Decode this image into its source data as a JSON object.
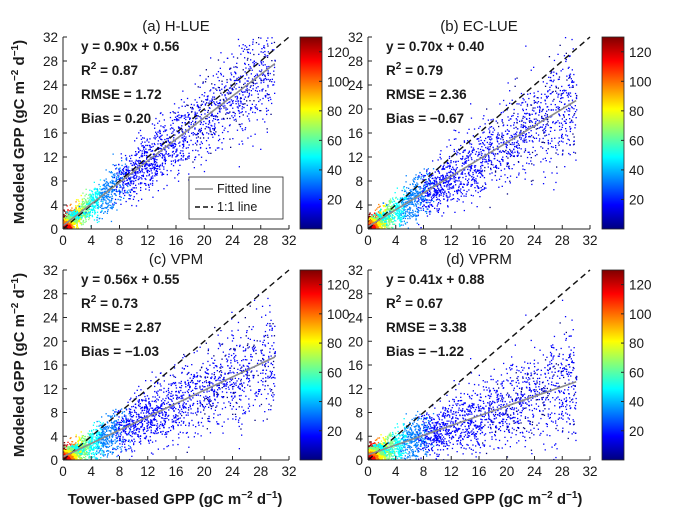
{
  "colors": {
    "axis": "#262626",
    "fitted_line": "#8c8c8c",
    "one_to_one": "#111111",
    "colormap": [
      "#00007f",
      "#0000ff",
      "#007fff",
      "#00ffff",
      "#7fff7f",
      "#ffff00",
      "#ff7f00",
      "#ff0000",
      "#7f0000"
    ]
  },
  "axis_labels": {
    "y_prefix": "Modeled GPP (gC m",
    "x_prefix": "Tower-based GPP (gC m",
    "exp_minus2": "−2",
    "mid": " d",
    "exp_minus1": "−1",
    "suffix": ")"
  },
  "legend": {
    "fitted": "Fitted line",
    "one_to_one": "1:1 line"
  },
  "chart_data": [
    {
      "type": "scatter",
      "title": "(a) H-LUE",
      "fit_equation": "y = 0.90x + 0.56",
      "r2_label": "R",
      "r2_value": " = 0.87",
      "rmse": "RMSE = 1.72",
      "bias": "Bias = 0.20",
      "slope": 0.9,
      "intercept": 0.56,
      "fit_x_range": [
        0,
        30
      ],
      "xlim": [
        0,
        32
      ],
      "ylim": [
        0,
        32
      ],
      "xticks": [
        0,
        4,
        8,
        12,
        16,
        20,
        24,
        28,
        32
      ],
      "yticks": [
        0,
        4,
        8,
        12,
        16,
        20,
        24,
        28,
        32
      ],
      "colorbar_range": [
        0,
        130
      ],
      "colorbar_ticks": [
        20,
        40,
        60,
        80,
        100,
        120
      ],
      "legend_shown": true
    },
    {
      "type": "scatter",
      "title": "(b) EC-LUE",
      "fit_equation": "y = 0.70x + 0.40",
      "r2_label": "R",
      "r2_value": " = 0.79",
      "rmse": "RMSE = 2.36",
      "bias": "Bias = −0.67",
      "slope": 0.7,
      "intercept": 0.4,
      "fit_x_range": [
        0,
        30
      ],
      "xlim": [
        0,
        32
      ],
      "ylim": [
        0,
        32
      ],
      "xticks": [
        0,
        4,
        8,
        12,
        16,
        20,
        24,
        28,
        32
      ],
      "yticks": [
        0,
        4,
        8,
        12,
        16,
        20,
        24,
        28,
        32
      ],
      "colorbar_range": [
        0,
        130
      ],
      "colorbar_ticks": [
        20,
        40,
        60,
        80,
        100,
        120
      ],
      "legend_shown": false
    },
    {
      "type": "scatter",
      "title": "(c) VPM",
      "fit_equation": "y = 0.56x + 0.55",
      "r2_label": "R",
      "r2_value": " = 0.73",
      "rmse": "RMSE = 2.87",
      "bias": "Bias = −1.03",
      "slope": 0.56,
      "intercept": 0.55,
      "fit_x_range": [
        0,
        30
      ],
      "xlim": [
        0,
        32
      ],
      "ylim": [
        0,
        32
      ],
      "xticks": [
        0,
        4,
        8,
        12,
        16,
        20,
        24,
        28,
        32
      ],
      "yticks": [
        0,
        4,
        8,
        12,
        16,
        20,
        24,
        28,
        32
      ],
      "colorbar_range": [
        0,
        130
      ],
      "colorbar_ticks": [
        20,
        40,
        60,
        80,
        100,
        120
      ],
      "legend_shown": false
    },
    {
      "type": "scatter",
      "title": "(d) VPRM",
      "fit_equation": "y = 0.41x + 0.88",
      "r2_label": "R",
      "r2_value": " = 0.67",
      "rmse": "RMSE = 3.38",
      "bias": "Bias = −1.22",
      "slope": 0.41,
      "intercept": 0.88,
      "fit_x_range": [
        0,
        30
      ],
      "xlim": [
        0,
        32
      ],
      "ylim": [
        0,
        32
      ],
      "xticks": [
        0,
        4,
        8,
        12,
        16,
        20,
        24,
        28,
        32
      ],
      "yticks": [
        0,
        4,
        8,
        12,
        16,
        20,
        24,
        28,
        32
      ],
      "colorbar_range": [
        0,
        130
      ],
      "colorbar_ticks": [
        20,
        40,
        60,
        80,
        100,
        120
      ],
      "legend_shown": false
    }
  ]
}
